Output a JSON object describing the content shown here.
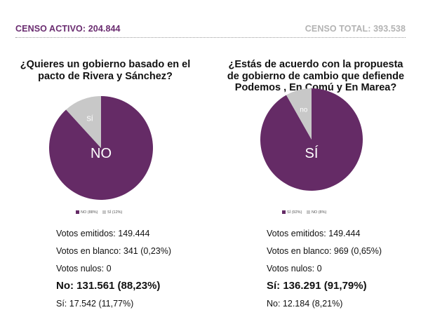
{
  "header": {
    "censo_activo_label": "CENSO ACTIVO: 204.844",
    "censo_total_label": "CENSO TOTAL: 393.538"
  },
  "colors": {
    "purple": "#652b66",
    "gray": "#c8c8c8",
    "header_purple": "#6a2c70",
    "header_gray": "#b3b3b3"
  },
  "chart_data": [
    {
      "type": "pie",
      "title": "¿Quieres un gobierno basado en el pacto de Rivera y Sánchez?",
      "title_lines": [
        "¿Quieres un gobierno basado en el",
        "pacto de Rivera y Sánchez?"
      ],
      "slices": [
        {
          "label": "NO",
          "value": 88.23,
          "color": "#652b66",
          "legend": "NO (88%)"
        },
        {
          "label": "SÍ",
          "value": 11.77,
          "color": "#c8c8c8",
          "legend": "SÍ (12%)"
        }
      ],
      "stats": {
        "votos_emitidos": "Votos emitidos: 149.444",
        "votos_blanco": "Votos en blanco: 341 (0,23%)",
        "votos_nulos": "Votos nulos: 0",
        "principal": "No: 131.561 (88,23%)",
        "secundario": "Sí: 17.542 (11,77%)"
      }
    },
    {
      "type": "pie",
      "title": "¿Estás de acuerdo con la propuesta de gobierno de cambio que defiende Podemos , En Comú y En Marea?",
      "title_lines": [
        "¿Estás de acuerdo con la propuesta",
        "de gobierno de cambio que defiende",
        "Podemos , En Comú y En Marea?"
      ],
      "slices": [
        {
          "label": "SÍ",
          "value": 91.79,
          "color": "#652b66",
          "legend": "SÍ (92%)"
        },
        {
          "label": "no",
          "value": 8.21,
          "color": "#c8c8c8",
          "legend": "NO (8%)"
        }
      ],
      "stats": {
        "votos_emitidos": "Votos emitidos: 149.444",
        "votos_blanco": "Votos en blanco: 969 (0,65%)",
        "votos_nulos": "Votos nulos: 0",
        "principal": "Sí: 136.291 (91,79%)",
        "secundario": "No: 12.184 (8,21%)"
      }
    }
  ]
}
